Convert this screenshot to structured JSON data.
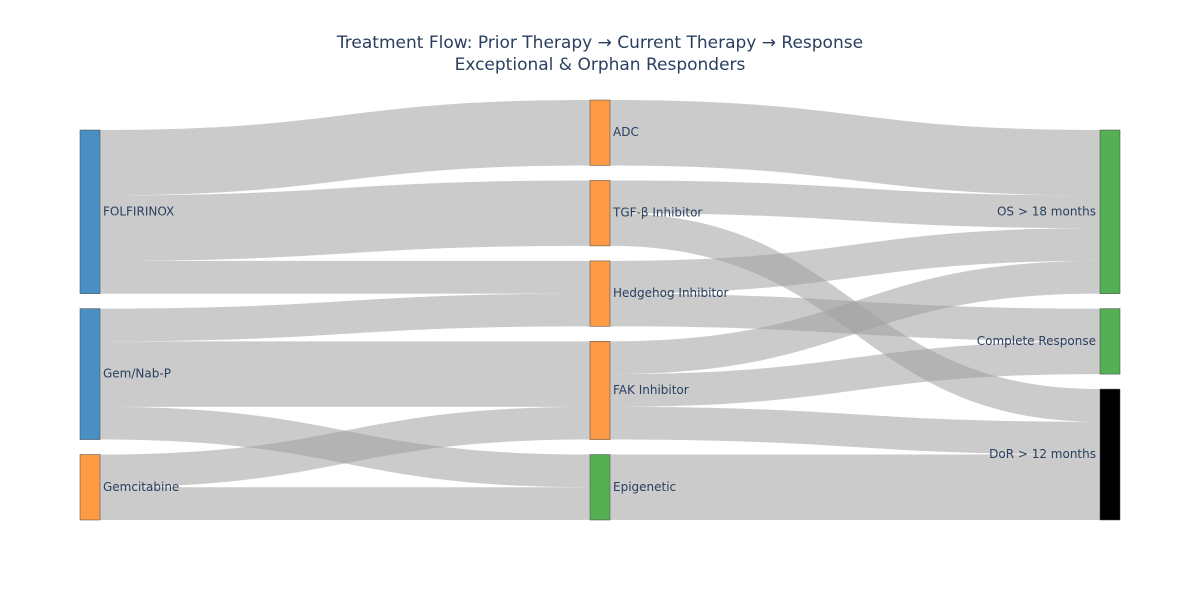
{
  "chart_data": {
    "type": "sankey",
    "title": "Treatment Flow: Prior Therapy → Current Therapy → Response",
    "subtitle": "Exceptional & Orphan Responders",
    "nodes": [
      {
        "id": "folfirinox",
        "label": "FOLFIRINOX",
        "column": 0,
        "color": "#4a8fc3"
      },
      {
        "id": "gemnabp",
        "label": "Gem/Nab-P",
        "column": 0,
        "color": "#4a8fc3"
      },
      {
        "id": "gemcitabine",
        "label": "Gemcitabine",
        "column": 0,
        "color": "#fd9a43"
      },
      {
        "id": "adc",
        "label": "ADC",
        "column": 1,
        "color": "#fd9a43"
      },
      {
        "id": "tgfb",
        "label": "TGF-β Inhibitor",
        "column": 1,
        "color": "#fd9a43"
      },
      {
        "id": "hedgehog",
        "label": "Hedgehog Inhibitor",
        "column": 1,
        "color": "#fd9a43"
      },
      {
        "id": "fak",
        "label": "FAK Inhibitor",
        "column": 1,
        "color": "#fd9a43"
      },
      {
        "id": "epigenetic",
        "label": "Epigenetic",
        "column": 1,
        "color": "#55b054"
      },
      {
        "id": "os18",
        "label": "OS > 18 months",
        "column": 2,
        "color": "#55b054"
      },
      {
        "id": "cr",
        "label": "Complete Response",
        "column": 2,
        "color": "#55b054"
      },
      {
        "id": "dor12",
        "label": "DoR > 12 months",
        "column": 2,
        "color": "#000000"
      }
    ],
    "links": [
      {
        "source": "folfirinox",
        "target": "adc",
        "value": 2
      },
      {
        "source": "folfirinox",
        "target": "tgfb",
        "value": 2
      },
      {
        "source": "folfirinox",
        "target": "hedgehog",
        "value": 1
      },
      {
        "source": "gemnabp",
        "target": "hedgehog",
        "value": 1
      },
      {
        "source": "gemnabp",
        "target": "fak",
        "value": 2
      },
      {
        "source": "gemnabp",
        "target": "epigenetic",
        "value": 1
      },
      {
        "source": "gemcitabine",
        "target": "fak",
        "value": 1
      },
      {
        "source": "gemcitabine",
        "target": "epigenetic",
        "value": 1
      },
      {
        "source": "adc",
        "target": "os18",
        "value": 2
      },
      {
        "source": "tgfb",
        "target": "os18",
        "value": 1
      },
      {
        "source": "tgfb",
        "target": "dor12",
        "value": 1
      },
      {
        "source": "hedgehog",
        "target": "os18",
        "value": 1
      },
      {
        "source": "hedgehog",
        "target": "cr",
        "value": 1
      },
      {
        "source": "fak",
        "target": "os18",
        "value": 1
      },
      {
        "source": "fak",
        "target": "cr",
        "value": 1
      },
      {
        "source": "fak",
        "target": "dor12",
        "value": 1
      },
      {
        "source": "epigenetic",
        "target": "dor12",
        "value": 2
      }
    ],
    "link_color": "#a0a0a0"
  }
}
